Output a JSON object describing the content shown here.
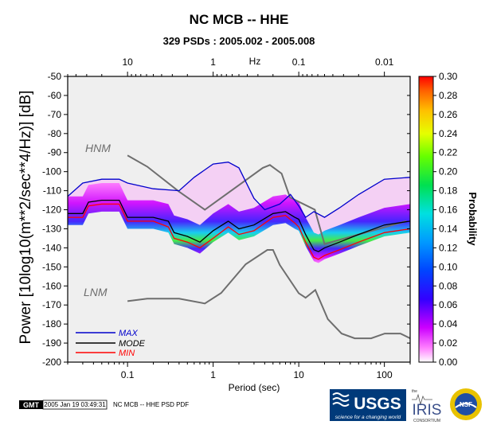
{
  "chart_data": {
    "type": "heatmap",
    "title": "NC MCB -- HHE",
    "subtitle": "329 PSDs : 2005.002 - 2005.008",
    "xlabel": "Period (sec)",
    "ylabel": "Power [10log10(m**2/sec**4/Hz)] [dB]",
    "x_scale": "log",
    "xlim": [
      0.02,
      200
    ],
    "ylim": [
      -200,
      -50
    ],
    "x_ticks": [
      0.1,
      1,
      10,
      100
    ],
    "x_tick_labels": [
      "0.1",
      "1",
      "10",
      "100"
    ],
    "top_axis": {
      "label": "Hz",
      "ticks": [
        10,
        1,
        0.1,
        0.01
      ],
      "tick_labels": [
        "10",
        "1",
        "0.1",
        "0.01"
      ]
    },
    "y_ticks": [
      -50,
      -60,
      -70,
      -80,
      -90,
      -100,
      -110,
      -120,
      -130,
      -140,
      -150,
      -160,
      -170,
      -180,
      -190,
      -200
    ],
    "y_tick_labels": [
      "-50",
      "-60",
      "-70",
      "-80",
      "-90",
      "-100",
      "-110",
      "-120",
      "-130",
      "-140",
      "-150",
      "-160",
      "-170",
      "-180",
      "-190",
      "-200"
    ],
    "colorbar": {
      "label": "Probability",
      "min": 0.0,
      "max": 0.3,
      "ticks": [
        "0.00",
        "0.02",
        "0.04",
        "0.06",
        "0.08",
        "0.10",
        "0.12",
        "0.14",
        "0.16",
        "0.18",
        "0.20",
        "0.22",
        "0.24",
        "0.26",
        "0.28",
        "0.30"
      ]
    },
    "reference_curves": [
      {
        "name": "HNM",
        "color": "#6e6e6e",
        "x": [
          0.1,
          0.17,
          0.4,
          0.8,
          3.8,
          4.6,
          6.3,
          7.9,
          15.4,
          20,
          180
        ],
        "y": [
          -91.5,
          -97.4,
          -110.5,
          -120,
          -98,
          -96.5,
          -101,
          -113.5,
          -120,
          -138,
          -126
        ]
      },
      {
        "name": "LNM",
        "color": "#6e6e6e",
        "x": [
          0.1,
          0.17,
          0.4,
          0.8,
          1.24,
          2.4,
          4.3,
          5,
          6,
          10,
          12,
          15.6,
          21.9,
          31.6,
          45,
          70,
          101,
          154,
          200
        ],
        "y": [
          -168,
          -166.7,
          -166.7,
          -169.2,
          -163.7,
          -148.6,
          -141.1,
          -141.1,
          -149,
          -163.8,
          -166.2,
          -162.1,
          -177.5,
          -185,
          -187.5,
          -187.5,
          -185,
          -185,
          -187.5
        ]
      }
    ],
    "series": [
      {
        "name": "MAX",
        "color": "#0000cc",
        "x": [
          0.02,
          0.03,
          0.05,
          0.08,
          0.1,
          0.2,
          0.4,
          0.6,
          1,
          1.5,
          2,
          3,
          4,
          6,
          8,
          10,
          12,
          15,
          20,
          30,
          50,
          100,
          200
        ],
        "y": [
          -113,
          -106,
          -104,
          -104,
          -106,
          -109,
          -110,
          -103,
          -96,
          -95,
          -98,
          -114,
          -120,
          -117,
          -112,
          -118,
          -124,
          -121,
          -124,
          -119,
          -112,
          -104,
          -103
        ]
      },
      {
        "name": "MODE",
        "color": "#000000",
        "x": [
          0.02,
          0.03,
          0.035,
          0.05,
          0.08,
          0.1,
          0.13,
          0.2,
          0.3,
          0.35,
          0.5,
          0.7,
          1,
          1.5,
          2,
          3,
          5,
          7,
          9,
          10,
          12,
          15,
          17,
          20,
          30,
          50,
          100,
          200
        ],
        "y": [
          -122,
          -122,
          -116,
          -115,
          -115,
          -124,
          -124,
          -124,
          -126,
          -132,
          -134,
          -137,
          -131,
          -126,
          -130,
          -128,
          -122,
          -121,
          -124,
          -125,
          -133,
          -141,
          -142,
          -140,
          -137,
          -133,
          -128,
          -126
        ]
      },
      {
        "name": "MIN",
        "color": "#ff0000",
        "x": [
          0.02,
          0.03,
          0.035,
          0.05,
          0.08,
          0.1,
          0.13,
          0.2,
          0.3,
          0.35,
          0.5,
          0.7,
          1,
          1.5,
          2,
          3,
          5,
          7,
          9,
          10,
          12,
          15,
          17,
          20,
          30,
          50,
          100,
          200
        ],
        "y": [
          -124,
          -124,
          -118,
          -117,
          -117,
          -126,
          -126,
          -126,
          -129,
          -135,
          -137,
          -140,
          -135,
          -129,
          -133,
          -131,
          -124,
          -123,
          -127,
          -129,
          -137,
          -145,
          -146,
          -144,
          -141,
          -137,
          -132,
          -130
        ]
      }
    ],
    "legend": {
      "position": "bottom-left",
      "items": [
        "MAX",
        "MODE",
        "MIN"
      ]
    }
  },
  "footer": {
    "gmt_logo": "GMT",
    "timestamp": "2005 Jan 19 03:49:31",
    "caption": "NC MCB -- HHE PSD PDF"
  },
  "logos": {
    "usgs": "USGS",
    "usgs_tagline": "science for a changing world",
    "iris_small": "the",
    "iris": "IRIS",
    "iris_sub": "CONSORTIUM",
    "nsf": "NSF"
  },
  "colors": {
    "max": "#0000cc",
    "mode": "#000000",
    "min": "#ff0000",
    "noise_models": "#6e6e6e"
  }
}
